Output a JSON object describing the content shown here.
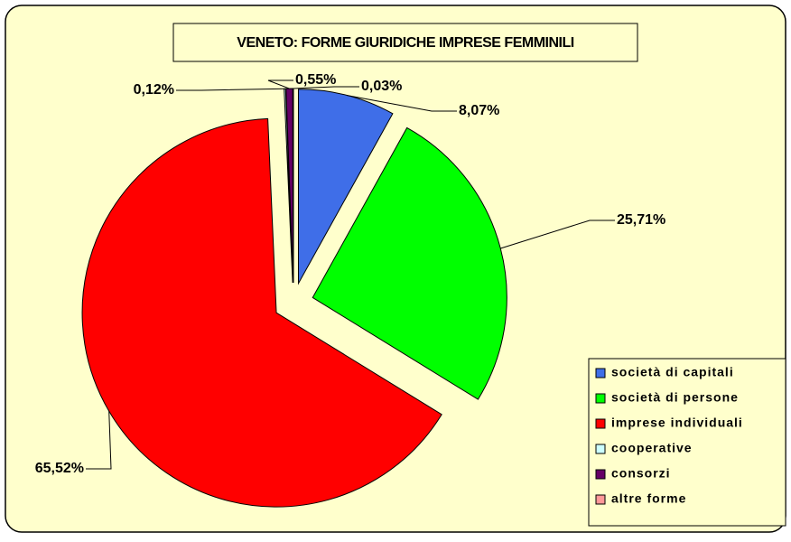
{
  "chart_data": {
    "type": "pie",
    "title": "VENETO: FORME GIURIDICHE IMPRESE FEMMINILI",
    "categories": [
      "società di capitali",
      "società di persone",
      "imprese individuali",
      "cooperative",
      "consorzi",
      "altre forme"
    ],
    "values": [
      8.07,
      25.71,
      65.52,
      0.12,
      0.55,
      0.03
    ],
    "value_labels": [
      "8,07%",
      "25,71%",
      "65,52%",
      "0,12%",
      "0,55%",
      "0,03%"
    ],
    "colors": [
      "#3f6ee8",
      "#00ff00",
      "#ff0000",
      "#ccffff",
      "#660066",
      "#ff9999"
    ],
    "legend": "right"
  }
}
